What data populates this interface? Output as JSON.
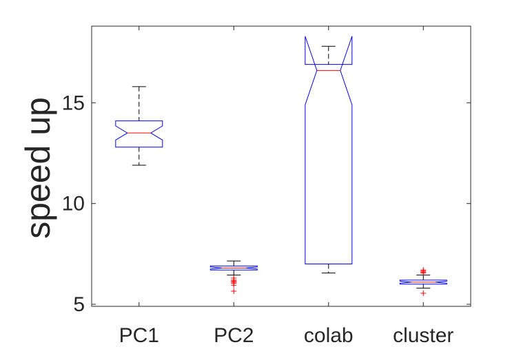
{
  "chart_data": {
    "type": "boxplot",
    "notched": true,
    "ylabel": "speed up",
    "ylim": [
      4.9,
      18.8
    ],
    "yticks": [
      5,
      10,
      15
    ],
    "grid": false,
    "colors": {
      "box": "#0000ff",
      "median": "#ff0000",
      "outlier": "#ff0000",
      "whisker": "#000000",
      "axis": "#262626"
    },
    "categories": [
      "PC1",
      "PC2",
      "colab",
      "cluster"
    ],
    "boxes": [
      {
        "label": "PC1",
        "whisker_low": 11.9,
        "q1": 12.8,
        "median": 13.5,
        "q3": 14.1,
        "whisker_high": 15.8,
        "notch_low": 13.15,
        "notch_high": 13.85,
        "outliers": []
      },
      {
        "label": "PC2",
        "whisker_low": 6.45,
        "q1": 6.7,
        "median": 6.8,
        "q3": 6.9,
        "whisker_high": 7.15,
        "notch_low": 6.75,
        "notch_high": 6.85,
        "outliers": [
          5.65,
          5.95,
          6.05,
          6.1,
          6.15,
          6.2,
          6.3
        ]
      },
      {
        "label": "colab",
        "whisker_low": 6.55,
        "q1": 7.0,
        "median": 16.6,
        "q3": 16.9,
        "whisker_high": 17.8,
        "notch_low": 14.9,
        "notch_high": 18.3,
        "outliers": []
      },
      {
        "label": "cluster",
        "whisker_low": 5.8,
        "q1": 6.0,
        "median": 6.1,
        "q3": 6.2,
        "whisker_high": 6.45,
        "notch_low": 6.05,
        "notch_high": 6.15,
        "outliers": [
          5.55,
          6.55,
          6.6,
          6.65,
          6.7
        ]
      }
    ]
  }
}
